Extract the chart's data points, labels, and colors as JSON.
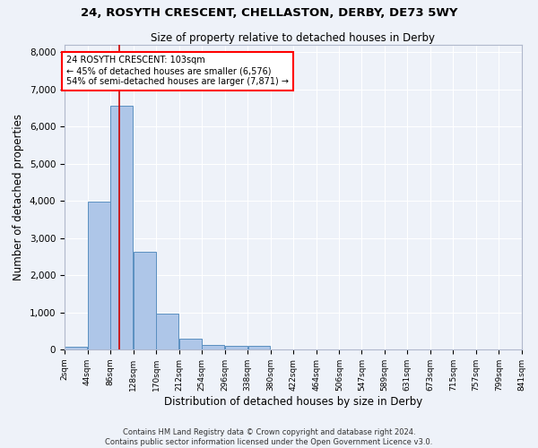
{
  "title": "24, ROSYTH CRESCENT, CHELLASTON, DERBY, DE73 5WY",
  "subtitle": "Size of property relative to detached houses in Derby",
  "xlabel": "Distribution of detached houses by size in Derby",
  "ylabel": "Number of detached properties",
  "footnote1": "Contains HM Land Registry data © Crown copyright and database right 2024.",
  "footnote2": "Contains public sector information licensed under the Open Government Licence v3.0.",
  "annotation_line1": "24 ROSYTH CRESCENT: 103sqm",
  "annotation_line2": "← 45% of detached houses are smaller (6,576)",
  "annotation_line3": "54% of semi-detached houses are larger (7,871) →",
  "property_size": 103,
  "bar_color": "#aec6e8",
  "bar_edge_color": "#5a8fc0",
  "vline_color": "#cc0000",
  "background_color": "#eef2f9",
  "bin_edges": [
    2,
    44,
    86,
    128,
    170,
    212,
    254,
    296,
    338,
    380,
    422,
    464,
    506,
    547,
    589,
    631,
    673,
    715,
    757,
    799,
    841
  ],
  "bar_heights": [
    75,
    3980,
    6570,
    2620,
    960,
    300,
    130,
    105,
    90,
    0,
    0,
    0,
    0,
    0,
    0,
    0,
    0,
    0,
    0,
    0
  ],
  "ylim": [
    0,
    8200
  ],
  "yticks": [
    0,
    1000,
    2000,
    3000,
    4000,
    5000,
    6000,
    7000,
    8000
  ]
}
